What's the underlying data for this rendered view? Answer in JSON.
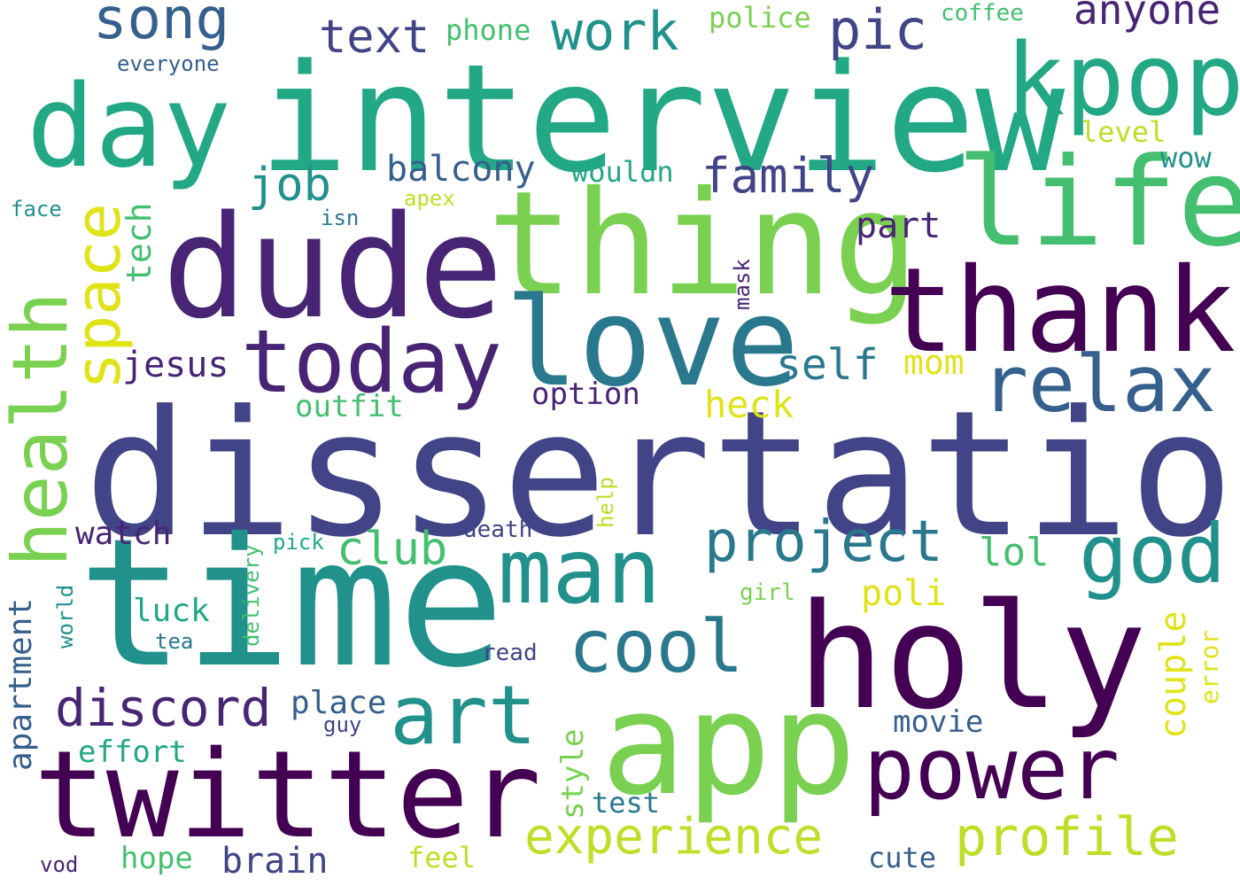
{
  "palette": {
    "p1": "#440154",
    "p2": "#482475",
    "p3": "#414487",
    "p4": "#355f8d",
    "p5": "#2a788e",
    "p6": "#21918c",
    "p7": "#22a884",
    "p8": "#44bf70",
    "p9": "#7ad151",
    "p10": "#bddf26",
    "p11": "#dfe318"
  },
  "words": [
    "dissertation",
    "time",
    "interview",
    "dude",
    "thing",
    "holy",
    "app",
    "love",
    "life",
    "thank",
    "day",
    "kpop",
    "twitter",
    "today",
    "health",
    "man",
    "power",
    "relax",
    "god",
    "art",
    "space",
    "cool",
    "profile",
    "project",
    "experience",
    "discord",
    "song",
    "work",
    "pic",
    "family",
    "text",
    "self",
    "job",
    "club",
    "anyone",
    "balcony",
    "jesus",
    "tech",
    "heck",
    "poli",
    "couple",
    "brain",
    "watch",
    "part",
    "lol",
    "outfit",
    "option",
    "mom",
    "wow",
    "luck",
    "place",
    "movie",
    "effort",
    "apartment",
    "style",
    "hope",
    "feel",
    "test",
    "cute",
    "level",
    "police",
    "phone",
    "wouldn",
    "coffee",
    "everyone",
    "death",
    "error",
    "face",
    "apex",
    "isn",
    "mask",
    "help",
    "pick",
    "delivery",
    "world",
    "girl",
    "tea",
    "read",
    "guy",
    "vod"
  ]
}
